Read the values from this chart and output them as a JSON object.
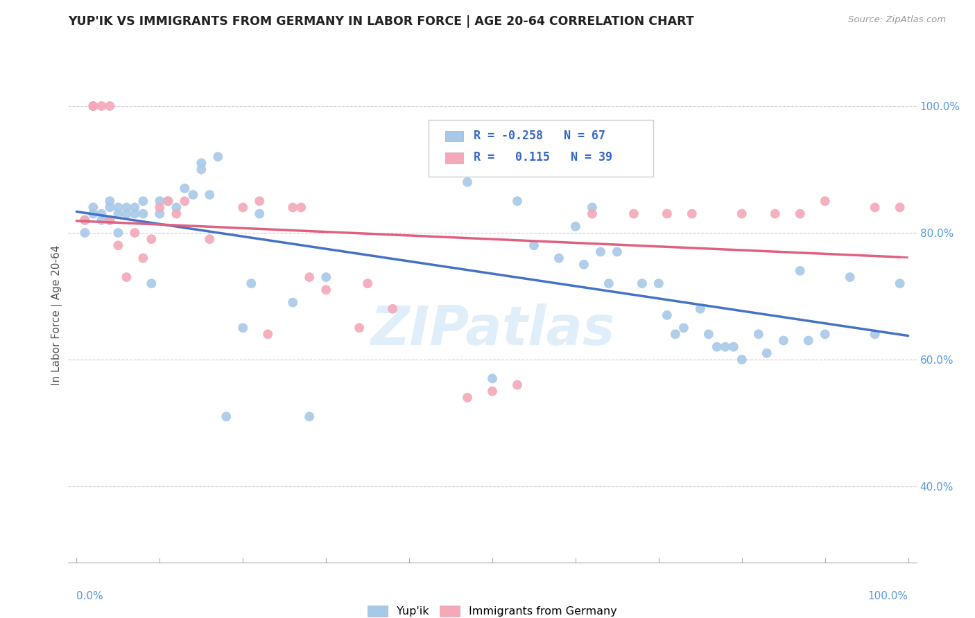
{
  "title": "YUP'IK VS IMMIGRANTS FROM GERMANY IN LABOR FORCE | AGE 20-64 CORRELATION CHART",
  "source": "Source: ZipAtlas.com",
  "ylabel": "In Labor Force | Age 20-64",
  "r_yupik": -0.258,
  "n_yupik": 67,
  "r_germany": 0.115,
  "n_germany": 39,
  "xlim": [
    -0.01,
    1.01
  ],
  "ylim": [
    0.28,
    1.06
  ],
  "yticks": [
    0.4,
    0.6,
    0.8,
    1.0
  ],
  "xtick_positions": [
    0.0,
    0.1,
    0.2,
    0.3,
    0.4,
    0.5,
    0.6,
    0.7,
    0.8,
    0.9,
    1.0
  ],
  "color_yupik": "#A8C8E8",
  "color_germany": "#F4A8B8",
  "trend_color_yupik": "#4472C4",
  "trend_color_germany": "#E06080",
  "background_color": "#ffffff",
  "watermark_text": "ZIPatlas",
  "yupik_x": [
    0.01,
    0.01,
    0.02,
    0.02,
    0.03,
    0.03,
    0.04,
    0.04,
    0.04,
    0.05,
    0.05,
    0.05,
    0.06,
    0.06,
    0.07,
    0.07,
    0.08,
    0.08,
    0.09,
    0.1,
    0.1,
    0.11,
    0.12,
    0.13,
    0.14,
    0.15,
    0.15,
    0.16,
    0.17,
    0.18,
    0.2,
    0.21,
    0.22,
    0.26,
    0.28,
    0.3,
    0.47,
    0.5,
    0.53,
    0.55,
    0.58,
    0.6,
    0.61,
    0.62,
    0.63,
    0.64,
    0.65,
    0.68,
    0.7,
    0.71,
    0.72,
    0.73,
    0.75,
    0.76,
    0.77,
    0.78,
    0.79,
    0.8,
    0.82,
    0.83,
    0.85,
    0.87,
    0.88,
    0.9,
    0.93,
    0.96,
    0.99
  ],
  "yupik_y": [
    0.82,
    0.8,
    0.84,
    0.83,
    0.83,
    0.82,
    0.85,
    0.84,
    0.82,
    0.84,
    0.83,
    0.8,
    0.84,
    0.83,
    0.84,
    0.83,
    0.85,
    0.83,
    0.72,
    0.85,
    0.83,
    0.85,
    0.84,
    0.87,
    0.86,
    0.91,
    0.9,
    0.86,
    0.92,
    0.51,
    0.65,
    0.72,
    0.83,
    0.69,
    0.51,
    0.73,
    0.88,
    0.57,
    0.85,
    0.78,
    0.76,
    0.81,
    0.75,
    0.84,
    0.77,
    0.72,
    0.77,
    0.72,
    0.72,
    0.67,
    0.64,
    0.65,
    0.68,
    0.64,
    0.62,
    0.62,
    0.62,
    0.6,
    0.64,
    0.61,
    0.63,
    0.74,
    0.63,
    0.64,
    0.73,
    0.64,
    0.72
  ],
  "germany_x": [
    0.01,
    0.02,
    0.02,
    0.03,
    0.04,
    0.04,
    0.05,
    0.06,
    0.07,
    0.08,
    0.09,
    0.1,
    0.11,
    0.12,
    0.13,
    0.16,
    0.2,
    0.22,
    0.23,
    0.26,
    0.27,
    0.28,
    0.3,
    0.34,
    0.35,
    0.38,
    0.47,
    0.5,
    0.53,
    0.62,
    0.67,
    0.71,
    0.74,
    0.8,
    0.84,
    0.87,
    0.9,
    0.96,
    0.99
  ],
  "germany_y": [
    0.82,
    1.0,
    1.0,
    1.0,
    1.0,
    0.82,
    0.78,
    0.73,
    0.8,
    0.76,
    0.79,
    0.84,
    0.85,
    0.83,
    0.85,
    0.79,
    0.84,
    0.85,
    0.64,
    0.84,
    0.84,
    0.73,
    0.71,
    0.65,
    0.72,
    0.68,
    0.54,
    0.55,
    0.56,
    0.83,
    0.83,
    0.83,
    0.83,
    0.83,
    0.83,
    0.83,
    0.85,
    0.84,
    0.84
  ]
}
